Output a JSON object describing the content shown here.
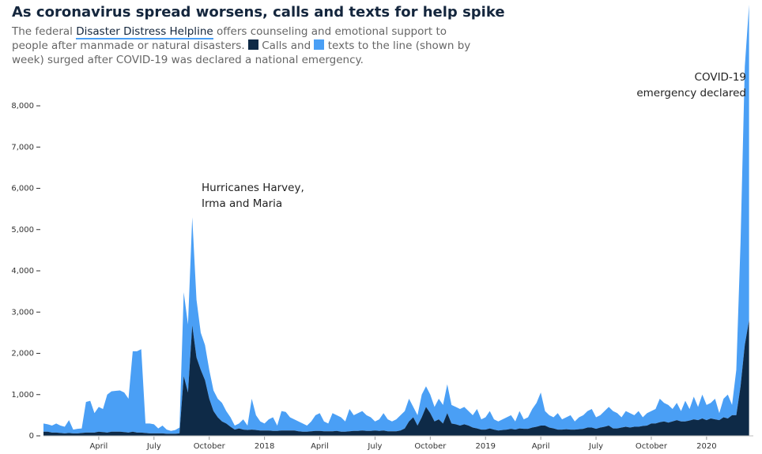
{
  "chart_data": {
    "type": "stacked-area",
    "title": "As coronavirus spread worsens, calls and texts for help spike",
    "subtitle": [
      "The federal",
      "Disaster Distress Helpline",
      "offers counseling and emotional support to people after manmade or natural disasters.",
      "and",
      "to the line (shown by week) surged after COVID-19 was declared a national emergency."
    ],
    "annotations": [
      [
        "Hurricanes Harvey,",
        "Irma and Maria"
      ],
      [
        "COVID-19",
        "emergency declared"
      ]
    ],
    "x": [
      0,
      1,
      2,
      3,
      4,
      5,
      6,
      7,
      8,
      9,
      10,
      11,
      12,
      13,
      14,
      15,
      16,
      17,
      18,
      19,
      20,
      21,
      22,
      23,
      24,
      25,
      26,
      27,
      28,
      29,
      30,
      31,
      32,
      33,
      34,
      35,
      36,
      37,
      38,
      39,
      40,
      41,
      42,
      43,
      44,
      45,
      46,
      47,
      48,
      49,
      50,
      51,
      52,
      53,
      54,
      55,
      56,
      57,
      58,
      59,
      60,
      61,
      62,
      63,
      64,
      65,
      66,
      67,
      68,
      69,
      70,
      71,
      72,
      73,
      74,
      75,
      76,
      77,
      78,
      79,
      80,
      81,
      82,
      83,
      84,
      85,
      86,
      87,
      88,
      89,
      90,
      91,
      92,
      93,
      94,
      95,
      96,
      97,
      98,
      99,
      100,
      101,
      102,
      103,
      104,
      105,
      106,
      107,
      108,
      109,
      110,
      111,
      112,
      113,
      114,
      115,
      116,
      117,
      118,
      119,
      120,
      121,
      122,
      123,
      124,
      125,
      126,
      127,
      128,
      129,
      130,
      131,
      132,
      133,
      134,
      135,
      136,
      137,
      138,
      139,
      140,
      141,
      142,
      143,
      144,
      145,
      146,
      147,
      148,
      149,
      150,
      151,
      152,
      153,
      154,
      155,
      156,
      157,
      158,
      159,
      160,
      161,
      162,
      163,
      164,
      165,
      166
    ],
    "series": [
      {
        "name": "Calls",
        "color": "#0e2a47",
        "values": [
          100,
          100,
          80,
          80,
          70,
          60,
          70,
          60,
          60,
          70,
          80,
          80,
          80,
          100,
          90,
          80,
          100,
          100,
          100,
          90,
          80,
          100,
          80,
          80,
          70,
          60,
          60,
          60,
          60,
          50,
          50,
          50,
          60,
          1450,
          1050,
          2680,
          1900,
          1600,
          1350,
          900,
          600,
          450,
          350,
          300,
          220,
          150,
          180,
          150,
          140,
          150,
          140,
          130,
          130,
          130,
          120,
          120,
          130,
          130,
          130,
          130,
          110,
          100,
          100,
          110,
          120,
          120,
          110,
          110,
          110,
          120,
          100,
          100,
          110,
          120,
          120,
          130,
          120,
          120,
          130,
          120,
          130,
          110,
          110,
          110,
          130,
          180,
          350,
          450,
          250,
          450,
          700,
          550,
          350,
          400,
          300,
          550,
          300,
          280,
          250,
          280,
          250,
          200,
          180,
          150,
          150,
          180,
          150,
          130,
          140,
          150,
          170,
          150,
          180,
          170,
          170,
          200,
          220,
          250,
          250,
          200,
          180,
          150,
          150,
          160,
          150,
          150,
          160,
          170,
          200,
          200,
          170,
          200,
          220,
          250,
          180,
          180,
          200,
          220,
          200,
          220,
          220,
          240,
          250,
          300,
          300,
          330,
          350,
          320,
          350,
          380,
          350,
          350,
          370,
          400,
          380,
          420,
          380,
          420,
          400,
          380,
          450,
          420,
          500,
          500,
          1200,
          2200,
          2800
        ]
      },
      {
        "name": "texts",
        "color": "#4a9ff5",
        "values": [
          200,
          180,
          170,
          220,
          180,
          160,
          310,
          90,
          110,
          110,
          740,
          770,
          470,
          600,
          560,
          920,
          980,
          990,
          1000,
          960,
          820,
          1950,
          1970,
          2020,
          230,
          240,
          220,
          120,
          190,
          100,
          70,
          90,
          140,
          2030,
          1650,
          2620,
          1400,
          900,
          850,
          700,
          500,
          450,
          450,
          300,
          230,
          100,
          120,
          250,
          110,
          750,
          360,
          220,
          170,
          270,
          330,
          130,
          470,
          450,
          320,
          270,
          240,
          200,
          150,
          240,
          380,
          430,
          240,
          190,
          440,
          380,
          350,
          250,
          540,
          380,
          430,
          470,
          380,
          330,
          220,
          280,
          420,
          290,
          240,
          290,
          370,
          420,
          550,
          250,
          250,
          550,
          500,
          450,
          350,
          500,
          450,
          700,
          450,
          420,
          400,
          420,
          350,
          300,
          470,
          250,
          300,
          420,
          250,
          220,
          260,
          300,
          330,
          200,
          420,
          230,
          280,
          450,
          580,
          800,
          350,
          300,
          270,
          400,
          250,
          290,
          350,
          200,
          290,
          330,
          400,
          450,
          280,
          300,
          380,
          450,
          420,
          370,
          250,
          380,
          350,
          280,
          380,
          210,
          300,
          300,
          350,
          570,
          450,
          430,
          300,
          420,
          250,
          500,
          280,
          550,
          320,
          580,
          370,
          380,
          500,
          170,
          450,
          580,
          250,
          1100,
          3500,
          6750,
          7650
        ]
      }
    ],
    "xlim": [
      0,
      167
    ],
    "xticks": [
      {
        "value": 13,
        "label": "April"
      },
      {
        "value": 26,
        "label": "July"
      },
      {
        "value": 39,
        "label": "October"
      },
      {
        "value": 52,
        "label": "2018"
      },
      {
        "value": 65,
        "label": "April"
      },
      {
        "value": 78,
        "label": "July"
      },
      {
        "value": 91,
        "label": "October"
      },
      {
        "value": 104,
        "label": "2019"
      },
      {
        "value": 117,
        "label": "April"
      },
      {
        "value": 130,
        "label": "July"
      },
      {
        "value": 143,
        "label": "October"
      },
      {
        "value": 156,
        "label": "2020"
      }
    ],
    "ylim": [
      0,
      10500
    ],
    "yticks": [
      0,
      {
        "value": 1000,
        "label": "1,000"
      },
      {
        "value": 2000,
        "label": "2,000"
      },
      {
        "value": 3000,
        "label": "3,000"
      },
      {
        "value": 4000,
        "label": "4,000"
      },
      {
        "value": 5000,
        "label": "5,000"
      },
      {
        "value": 6000,
        "label": "6,000"
      },
      {
        "value": 7000,
        "label": "7,000"
      },
      {
        "value": 8000,
        "label": "8,000"
      }
    ]
  }
}
